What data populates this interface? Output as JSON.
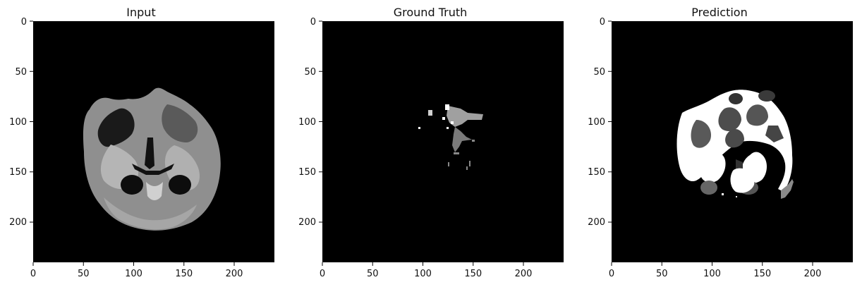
{
  "panels": [
    {
      "title": "Input",
      "image": "mri-input-slice"
    },
    {
      "title": "Ground Truth",
      "image": "ground-truth-segmentation-mask"
    },
    {
      "title": "Prediction",
      "image": "predicted-segmentation-mask"
    }
  ],
  "axes": {
    "xticks": [
      "0",
      "50",
      "100",
      "150",
      "200"
    ],
    "yticks": [
      "0",
      "50",
      "100",
      "150",
      "200"
    ],
    "xlim": [
      0,
      240
    ],
    "ylim": [
      0,
      240
    ]
  }
}
